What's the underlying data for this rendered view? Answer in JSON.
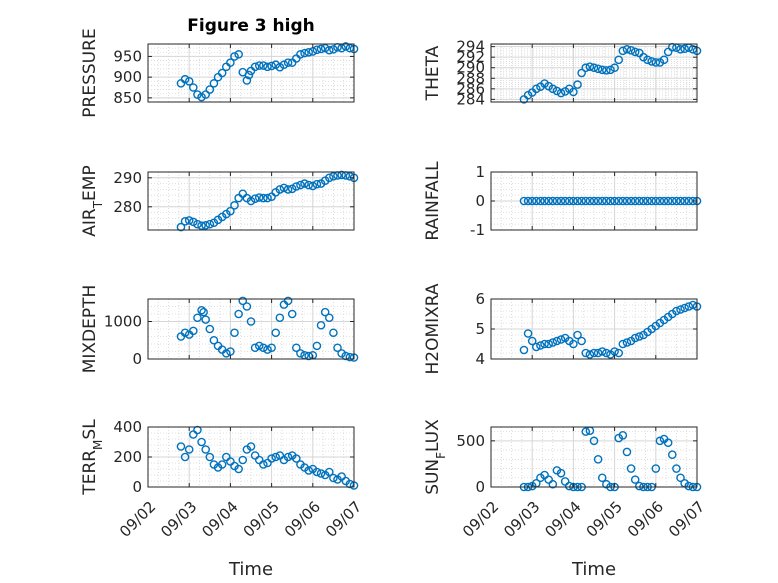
{
  "figure": {
    "title": "Figure 3 high",
    "xlabel": "Time"
  },
  "colors": {
    "marker": "#0072BD",
    "axis": "#262626",
    "grid": "#d6d6d6"
  },
  "chart_data": [
    {
      "type": "scatter",
      "ylabel": "PRESSURE",
      "ylim": [
        840,
        980
      ],
      "yticks": [
        850,
        900,
        950
      ],
      "xticks": [
        "09/02",
        "09/03",
        "09/04",
        "09/05",
        "09/06",
        "09/07"
      ],
      "xlim": [
        0,
        5
      ],
      "series": [
        {
          "x": [
            0.8,
            0.9,
            1.0,
            1.1,
            1.2,
            1.3,
            1.4,
            1.5,
            1.6,
            1.7,
            1.8,
            1.9,
            2.0,
            2.1,
            2.2,
            2.3,
            2.4,
            2.45,
            2.5,
            2.6,
            2.7,
            2.8,
            2.9,
            3.0,
            3.1,
            3.2,
            3.3,
            3.4,
            3.5,
            3.6,
            3.7,
            3.8,
            3.9,
            4.0,
            4.1,
            4.2,
            4.3,
            4.4,
            4.5,
            4.6,
            4.7,
            4.8,
            4.9,
            5.0
          ],
          "y": [
            885,
            895,
            890,
            875,
            858,
            852,
            858,
            870,
            885,
            900,
            910,
            925,
            935,
            950,
            955,
            912,
            892,
            905,
            915,
            925,
            928,
            928,
            925,
            927,
            930,
            924,
            930,
            935,
            935,
            945,
            955,
            958,
            960,
            962,
            966,
            968,
            970,
            965,
            967,
            972,
            970,
            974,
            970,
            968
          ]
        }
      ]
    },
    {
      "type": "scatter",
      "ylabel": "THETA",
      "ylim": [
        283.5,
        294.5
      ],
      "yticks": [
        284,
        286,
        288,
        290,
        292,
        294
      ],
      "xticks": [
        "09/02",
        "09/03",
        "09/04",
        "09/05",
        "09/06",
        "09/07"
      ],
      "xlim": [
        0,
        5
      ],
      "series": [
        {
          "x": [
            0.8,
            0.9,
            1.0,
            1.1,
            1.2,
            1.3,
            1.4,
            1.5,
            1.6,
            1.7,
            1.8,
            1.9,
            2.0,
            2.1,
            2.2,
            2.3,
            2.4,
            2.5,
            2.6,
            2.7,
            2.8,
            2.9,
            3.0,
            3.1,
            3.2,
            3.3,
            3.4,
            3.5,
            3.6,
            3.7,
            3.8,
            3.9,
            4.0,
            4.1,
            4.2,
            4.3,
            4.4,
            4.5,
            4.6,
            4.7,
            4.8,
            4.9,
            5.0
          ],
          "y": [
            284.0,
            284.8,
            285.3,
            286.0,
            286.4,
            287.0,
            286.5,
            286.0,
            285.6,
            285.2,
            285.5,
            286.0,
            285.4,
            286.8,
            289.0,
            290.0,
            290.2,
            290.0,
            289.8,
            289.6,
            289.5,
            289.6,
            290.0,
            291.5,
            293.2,
            293.5,
            293.3,
            293.0,
            292.8,
            292.0,
            291.5,
            291.2,
            291.0,
            291.0,
            291.5,
            293.0,
            293.9,
            293.8,
            293.5,
            293.6,
            293.8,
            293.5,
            293.2
          ]
        }
      ]
    },
    {
      "type": "scatter",
      "ylabel": "AIR_TEMP",
      "ylim": [
        272,
        292
      ],
      "yticks": [
        280,
        290
      ],
      "xticks": [
        "09/02",
        "09/03",
        "09/04",
        "09/05",
        "09/06",
        "09/07"
      ],
      "xlim": [
        0,
        5
      ],
      "series": [
        {
          "x": [
            0.8,
            0.9,
            1.0,
            1.1,
            1.2,
            1.3,
            1.4,
            1.5,
            1.6,
            1.7,
            1.8,
            1.9,
            2.0,
            2.1,
            2.2,
            2.3,
            2.4,
            2.5,
            2.6,
            2.7,
            2.8,
            2.9,
            3.0,
            3.1,
            3.2,
            3.3,
            3.4,
            3.5,
            3.6,
            3.7,
            3.8,
            3.9,
            4.0,
            4.1,
            4.2,
            4.3,
            4.4,
            4.5,
            4.6,
            4.7,
            4.8,
            4.9,
            5.0
          ],
          "y": [
            273.0,
            275.0,
            275.3,
            274.8,
            274.0,
            273.5,
            273.6,
            274.0,
            274.5,
            275.5,
            276.5,
            277.5,
            278.5,
            280.5,
            283.0,
            284.5,
            283.0,
            282.0,
            282.8,
            283.2,
            283.0,
            283.0,
            283.5,
            285.0,
            286.0,
            286.5,
            286.0,
            286.2,
            287.0,
            287.5,
            288.0,
            287.5,
            287.2,
            287.8,
            288.0,
            289.0,
            290.0,
            290.5,
            290.8,
            291.0,
            290.8,
            290.5,
            290.0
          ]
        }
      ]
    },
    {
      "type": "scatter",
      "ylabel": "RAINFALL",
      "ylim": [
        -1,
        1
      ],
      "yticks": [
        -1,
        0,
        1
      ],
      "xticks": [
        "09/02",
        "09/03",
        "09/04",
        "09/05",
        "09/06",
        "09/07"
      ],
      "xlim": [
        0,
        5
      ],
      "series": [
        {
          "x": [
            0.8,
            0.9,
            1.0,
            1.1,
            1.2,
            1.3,
            1.4,
            1.5,
            1.6,
            1.7,
            1.8,
            1.9,
            2.0,
            2.1,
            2.2,
            2.3,
            2.4,
            2.5,
            2.6,
            2.7,
            2.8,
            2.9,
            3.0,
            3.1,
            3.2,
            3.3,
            3.4,
            3.5,
            3.6,
            3.7,
            3.8,
            3.9,
            4.0,
            4.1,
            4.2,
            4.3,
            4.4,
            4.5,
            4.6,
            4.7,
            4.8,
            4.9,
            5.0
          ],
          "y": [
            0,
            0,
            0,
            0,
            0,
            0,
            0,
            0,
            0,
            0,
            0,
            0,
            0,
            0,
            0,
            0,
            0,
            0,
            0,
            0,
            0,
            0,
            0,
            0,
            0,
            0,
            0,
            0,
            0,
            0,
            0,
            0,
            0,
            0,
            0,
            0,
            0,
            0,
            0,
            0,
            0,
            0,
            0
          ]
        }
      ]
    },
    {
      "type": "scatter",
      "ylabel": "MIXDEPTH",
      "ylim": [
        0,
        1600
      ],
      "yticks": [
        0,
        1000
      ],
      "xticks": [
        "09/02",
        "09/03",
        "09/04",
        "09/05",
        "09/06",
        "09/07"
      ],
      "xlim": [
        0,
        5
      ],
      "series": [
        {
          "x": [
            0.8,
            0.9,
            1.0,
            1.1,
            1.2,
            1.3,
            1.35,
            1.4,
            1.5,
            1.6,
            1.7,
            1.8,
            1.9,
            2.0,
            2.1,
            2.2,
            2.3,
            2.4,
            2.5,
            2.6,
            2.7,
            2.8,
            2.9,
            3.0,
            3.1,
            3.2,
            3.3,
            3.4,
            3.5,
            3.6,
            3.7,
            3.8,
            3.9,
            4.0,
            4.1,
            4.2,
            4.3,
            4.4,
            4.5,
            4.6,
            4.7,
            4.8,
            4.9,
            5.0
          ],
          "y": [
            600,
            700,
            650,
            750,
            1100,
            1300,
            1250,
            1050,
            800,
            500,
            350,
            250,
            150,
            200,
            700,
            1200,
            1550,
            1400,
            1000,
            300,
            350,
            300,
            250,
            300,
            700,
            1100,
            1450,
            1550,
            1200,
            300,
            150,
            100,
            80,
            100,
            350,
            900,
            1250,
            1100,
            700,
            300,
            150,
            80,
            50,
            40
          ]
        }
      ]
    },
    {
      "type": "scatter",
      "ylabel": "H2OMIXRA",
      "ylim": [
        4,
        6
      ],
      "yticks": [
        4,
        5,
        6
      ],
      "xticks": [
        "09/02",
        "09/03",
        "09/04",
        "09/05",
        "09/06",
        "09/07"
      ],
      "xlim": [
        0,
        5
      ],
      "series": [
        {
          "x": [
            0.8,
            0.9,
            1.0,
            1.1,
            1.2,
            1.3,
            1.4,
            1.5,
            1.6,
            1.7,
            1.8,
            1.9,
            2.0,
            2.1,
            2.2,
            2.3,
            2.4,
            2.5,
            2.6,
            2.7,
            2.8,
            2.9,
            3.0,
            3.1,
            3.2,
            3.3,
            3.4,
            3.5,
            3.6,
            3.7,
            3.8,
            3.9,
            4.0,
            4.1,
            4.2,
            4.3,
            4.4,
            4.5,
            4.6,
            4.7,
            4.8,
            4.9,
            5.0
          ],
          "y": [
            4.3,
            4.85,
            4.6,
            4.4,
            4.45,
            4.5,
            4.5,
            4.55,
            4.6,
            4.65,
            4.7,
            4.6,
            4.5,
            4.8,
            4.6,
            4.2,
            4.15,
            4.2,
            4.2,
            4.25,
            4.2,
            4.15,
            4.25,
            4.2,
            4.5,
            4.55,
            4.6,
            4.7,
            4.75,
            4.8,
            4.9,
            5.0,
            5.1,
            5.2,
            5.3,
            5.4,
            5.5,
            5.6,
            5.65,
            5.7,
            5.75,
            5.8,
            5.75
          ]
        }
      ]
    },
    {
      "type": "scatter",
      "ylabel": "TERR_MSL",
      "ylim": [
        0,
        400
      ],
      "yticks": [
        0,
        200,
        400
      ],
      "xticks": [
        "09/02",
        "09/03",
        "09/04",
        "09/05",
        "09/06",
        "09/07"
      ],
      "xlim": [
        0,
        5
      ],
      "series": [
        {
          "x": [
            0.8,
            0.9,
            1.0,
            1.1,
            1.2,
            1.3,
            1.4,
            1.5,
            1.6,
            1.7,
            1.8,
            1.9,
            2.0,
            2.1,
            2.2,
            2.3,
            2.4,
            2.5,
            2.6,
            2.7,
            2.8,
            2.9,
            3.0,
            3.1,
            3.2,
            3.3,
            3.4,
            3.5,
            3.6,
            3.7,
            3.8,
            3.9,
            4.0,
            4.1,
            4.2,
            4.3,
            4.4,
            4.5,
            4.6,
            4.7,
            4.8,
            4.9,
            5.0
          ],
          "y": [
            270,
            200,
            250,
            350,
            380,
            300,
            250,
            200,
            150,
            130,
            150,
            200,
            170,
            140,
            120,
            180,
            250,
            270,
            210,
            180,
            150,
            160,
            190,
            200,
            210,
            180,
            200,
            210,
            190,
            150,
            130,
            110,
            120,
            100,
            90,
            80,
            100,
            60,
            50,
            70,
            40,
            20,
            10
          ]
        }
      ]
    },
    {
      "type": "scatter",
      "ylabel": "SUN_FLUX",
      "ylim": [
        0,
        650
      ],
      "yticks": [
        0,
        500
      ],
      "xticks": [
        "09/02",
        "09/03",
        "09/04",
        "09/05",
        "09/06",
        "09/07"
      ],
      "xlim": [
        0,
        5
      ],
      "series": [
        {
          "x": [
            0.8,
            0.9,
            1.0,
            1.1,
            1.2,
            1.3,
            1.4,
            1.5,
            1.6,
            1.7,
            1.8,
            1.9,
            2.0,
            2.1,
            2.2,
            2.3,
            2.4,
            2.5,
            2.6,
            2.7,
            2.8,
            2.9,
            3.0,
            3.1,
            3.2,
            3.3,
            3.4,
            3.5,
            3.6,
            3.7,
            3.8,
            3.9,
            4.0,
            4.1,
            4.2,
            4.3,
            4.4,
            4.5,
            4.6,
            4.7,
            4.8,
            4.9,
            5.0
          ],
          "y": [
            0,
            0,
            10,
            40,
            100,
            130,
            80,
            30,
            180,
            150,
            60,
            10,
            0,
            0,
            0,
            600,
            610,
            500,
            300,
            100,
            30,
            0,
            0,
            530,
            560,
            380,
            200,
            80,
            10,
            0,
            0,
            0,
            200,
            500,
            520,
            480,
            350,
            200,
            100,
            40,
            10,
            0,
            0
          ]
        }
      ]
    }
  ]
}
